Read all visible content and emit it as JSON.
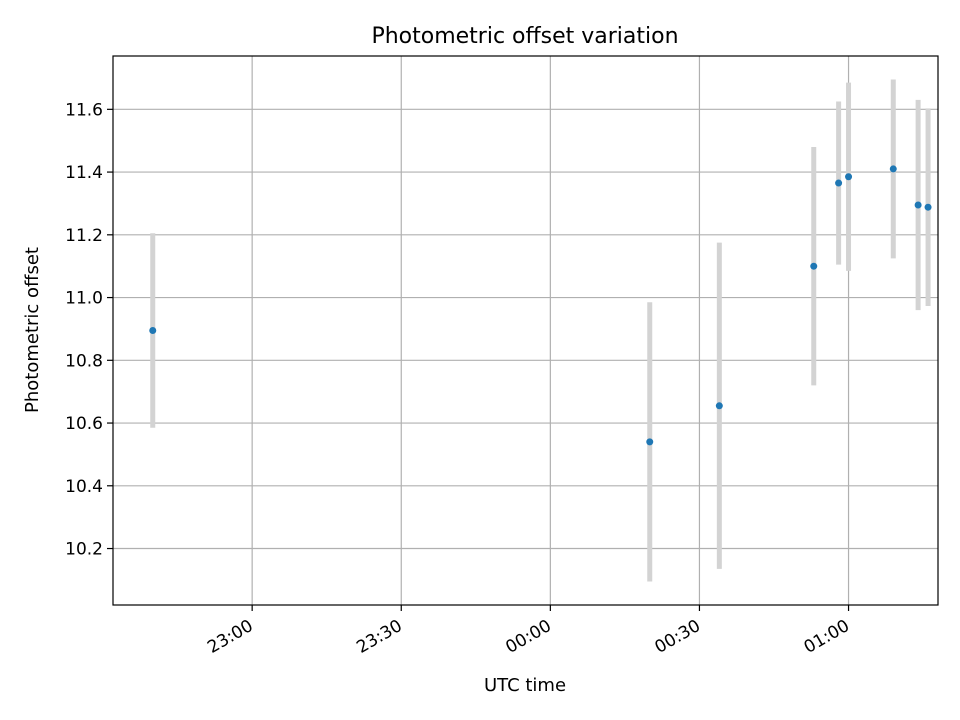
{
  "chart_data": {
    "type": "scatter",
    "title": "Photometric offset variation",
    "xlabel": "UTC time",
    "ylabel": "Photometric offset",
    "grid": true,
    "legend": "none",
    "xlim": [
      "22:32",
      "01:18"
    ],
    "ylim": [
      10.02,
      11.77
    ],
    "x_ticks": [
      "23:00",
      "23:30",
      "00:00",
      "00:30",
      "01:00"
    ],
    "y_ticks": [
      "10.2",
      "10.4",
      "10.6",
      "10.8",
      "11.0",
      "11.2",
      "11.4",
      "11.6"
    ],
    "points": [
      {
        "x": "22:40",
        "y": 10.895,
        "err": 0.31
      },
      {
        "x": "00:20",
        "y": 10.54,
        "err": 0.445
      },
      {
        "x": "00:34",
        "y": 10.655,
        "err": 0.52
      },
      {
        "x": "00:53",
        "y": 11.1,
        "err": 0.38
      },
      {
        "x": "00:58",
        "y": 11.365,
        "err": 0.26
      },
      {
        "x": "01:00",
        "y": 11.385,
        "err": 0.3
      },
      {
        "x": "01:09",
        "y": 11.41,
        "err": 0.285
      },
      {
        "x": "01:14",
        "y": 11.295,
        "err": 0.335
      },
      {
        "x": "01:16",
        "y": 11.288,
        "err": 0.315
      }
    ],
    "marker_color": "#1f77b4",
    "errorbar_color": "#d3d3d3"
  }
}
